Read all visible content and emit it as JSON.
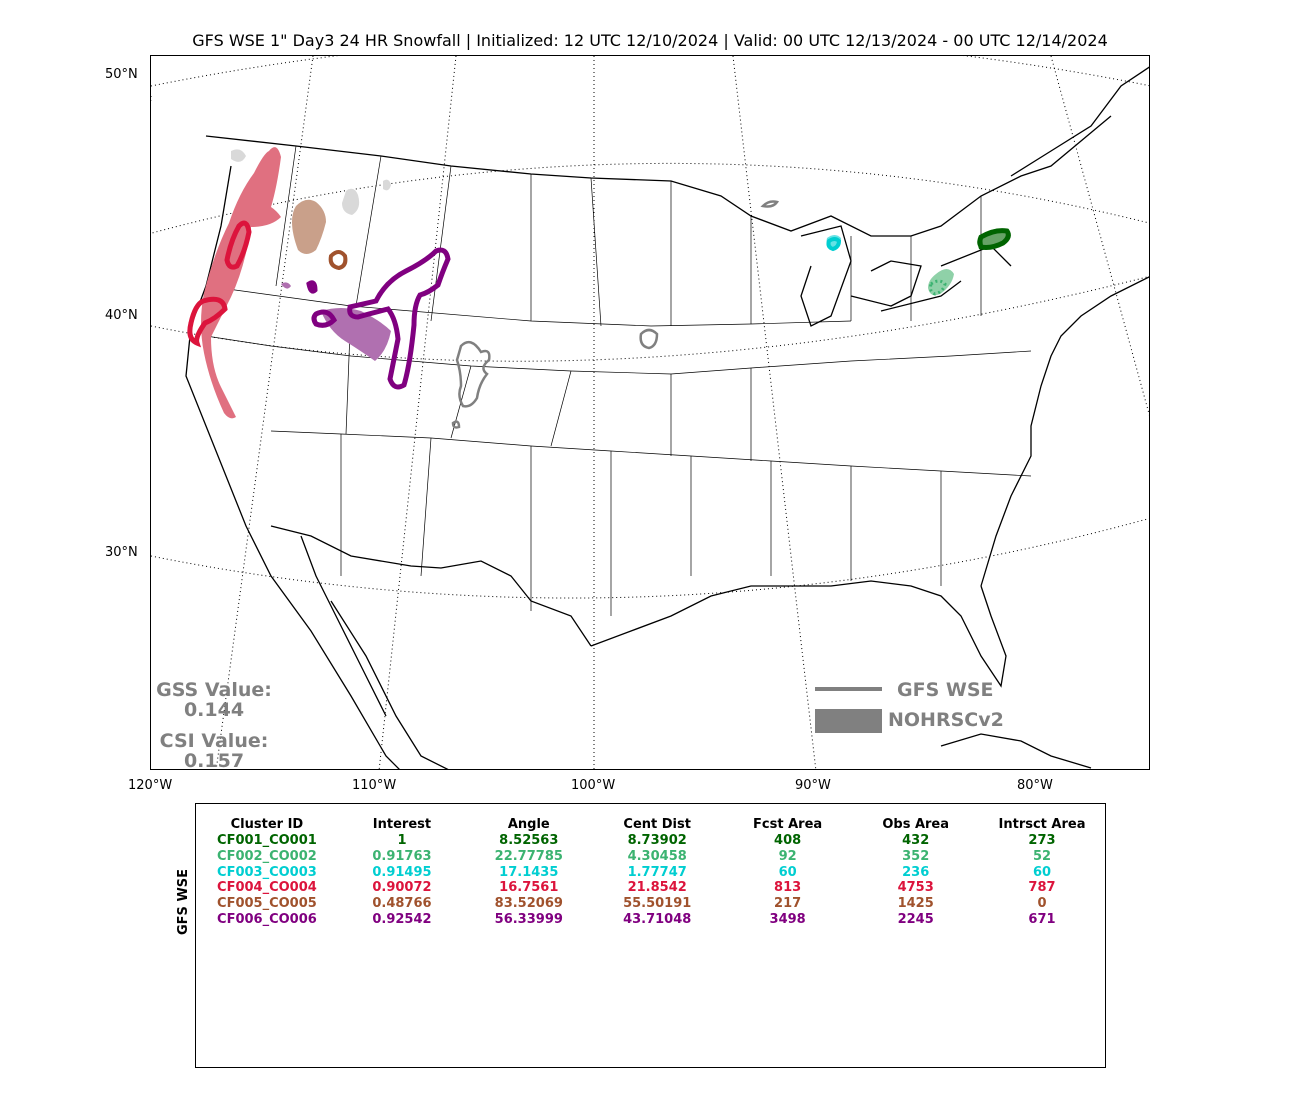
{
  "title": "GFS WSE 1\" Day3 24 HR Snowfall | Initialized: 12 UTC 12/10/2024 | Valid: 00 UTC 12/13/2024 - 00 UTC 12/14/2024",
  "lat_labels": [
    "50°N",
    "40°N",
    "30°N"
  ],
  "lon_labels": [
    "120°W",
    "110°W",
    "100°W",
    "90°W",
    "80°W"
  ],
  "stats": {
    "gss_label": "GSS Value:",
    "gss_value": "0.144",
    "csi_label": "CSI Value:",
    "csi_value": "0.157"
  },
  "legend": {
    "forecast_label": "GFS WSE",
    "forecast_color": "#808080",
    "observed_label": "NOHRSCv2",
    "observed_color": "#808080"
  },
  "table": {
    "side_label": "GFS WSE",
    "headers": [
      "Cluster ID",
      "Interest",
      "Angle",
      "Cent Dist",
      "Fcst Area",
      "Obs Area",
      "Intrsct Area"
    ],
    "rows": [
      {
        "color": "#006400",
        "cells": [
          "CF001_CO001",
          "1",
          "8.52563",
          "8.73902",
          "408",
          "432",
          "273"
        ]
      },
      {
        "color": "#3cb371",
        "cells": [
          "CF002_CO002",
          "0.91763",
          "22.77785",
          "4.30458",
          "92",
          "352",
          "52"
        ]
      },
      {
        "color": "#00ced1",
        "cells": [
          "CF003_CO003",
          "0.91495",
          "17.1435",
          "1.77747",
          "60",
          "236",
          "60"
        ]
      },
      {
        "color": "#dc143c",
        "cells": [
          "CF004_CO004",
          "0.90072",
          "16.7561",
          "21.8542",
          "813",
          "4753",
          "787"
        ]
      },
      {
        "color": "#a0522d",
        "cells": [
          "CF005_CO005",
          "0.48766",
          "83.52069",
          "55.50191",
          "217",
          "1425",
          "0"
        ]
      },
      {
        "color": "#800080",
        "cells": [
          "CF006_CO006",
          "0.92542",
          "56.33999",
          "43.71048",
          "3498",
          "2245",
          "671"
        ]
      }
    ]
  },
  "map": {
    "fill_colors": {
      "unmatched": "#d9d9d9",
      "CF001": "#66a366",
      "CF002": "#8fd1a8",
      "CF003": "#66e2e5",
      "CF004": "#e07080",
      "CF005": "#c9a08a",
      "CF006": "#b070b0"
    },
    "outline_colors": {
      "unmatched": "#808080",
      "CF001": "#006400",
      "CF002": "#3cb371",
      "CF003": "#00ced1",
      "CF004": "#dc143c",
      "CF005": "#a0522d",
      "CF006": "#800080"
    }
  }
}
